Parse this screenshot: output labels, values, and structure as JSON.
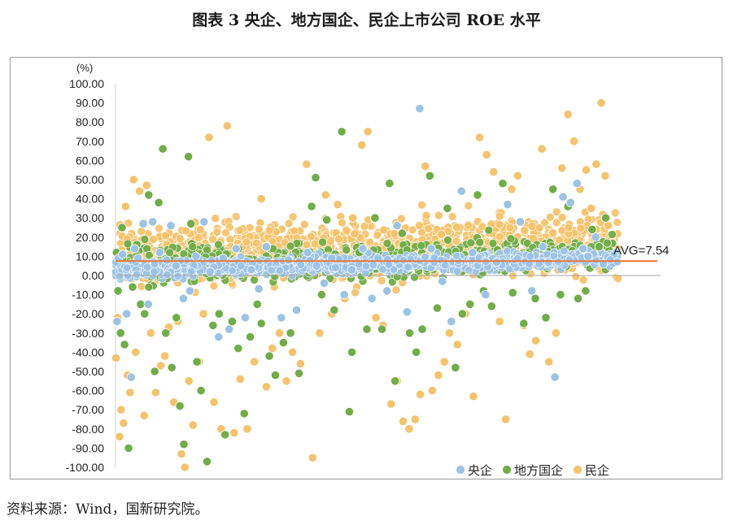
{
  "title": "图表 3  央企、地方国企、民企上市公司 ROE 水平",
  "source": "资料来源：Wind，国新研究院。",
  "chart_data": {
    "type": "scatter",
    "y_unit_label": "(%)",
    "ylim": [
      -100,
      100
    ],
    "y_ticks": [
      "100.00",
      "90.00",
      "80.00",
      "70.00",
      "60.00",
      "50.00",
      "40.00",
      "30.00",
      "20.00",
      "10.00",
      "0.00",
      "-10.00",
      "-20.00",
      "-30.00",
      "-40.00",
      "-50.00",
      "-60.00",
      "-70.00",
      "-80.00",
      "-90.00",
      "-100.00"
    ],
    "x_index_range": [
      0,
      1000
    ],
    "grid": false,
    "legend_position": "bottom-right",
    "average": {
      "label": "AVG=7.54",
      "value": 7.54,
      "color": "#E8763A"
    },
    "series": [
      {
        "name": "央企",
        "color": "#9CC3E6",
        "points": [
          [
            3,
            -24
          ],
          [
            6,
            9
          ],
          [
            14,
            11
          ],
          [
            22,
            -20
          ],
          [
            31,
            -53
          ],
          [
            38,
            14
          ],
          [
            45,
            9
          ],
          [
            55,
            27
          ],
          [
            65,
            -15
          ],
          [
            74,
            28
          ],
          [
            88,
            12
          ],
          [
            102,
            8
          ],
          [
            110,
            26
          ],
          [
            120,
            5
          ],
          [
            135,
            -12
          ],
          [
            148,
            -8
          ],
          [
            160,
            10
          ],
          [
            176,
            28
          ],
          [
            188,
            2
          ],
          [
            205,
            -32
          ],
          [
            214,
            9
          ],
          [
            226,
            -28
          ],
          [
            240,
            14
          ],
          [
            258,
            -22
          ],
          [
            270,
            3
          ],
          [
            285,
            -7
          ],
          [
            300,
            15
          ],
          [
            330,
            -22
          ],
          [
            344,
            8
          ],
          [
            360,
            -18
          ],
          [
            382,
            12
          ],
          [
            400,
            5
          ],
          [
            415,
            -4
          ],
          [
            430,
            9
          ],
          [
            455,
            -10
          ],
          [
            470,
            3
          ],
          [
            492,
            14
          ],
          [
            510,
            -12
          ],
          [
            522,
            9
          ],
          [
            540,
            -8
          ],
          [
            560,
            26
          ],
          [
            580,
            -19
          ],
          [
            605,
            87
          ],
          [
            628,
            14
          ],
          [
            650,
            -3
          ],
          [
            668,
            -24
          ],
          [
            688,
            44
          ],
          [
            710,
            12
          ],
          [
            736,
            -10
          ],
          [
            758,
            7
          ],
          [
            780,
            37
          ],
          [
            805,
            28
          ],
          [
            828,
            -8
          ],
          [
            850,
            15
          ],
          [
            874,
            -53
          ],
          [
            890,
            41
          ],
          [
            905,
            38
          ],
          [
            918,
            48
          ],
          [
            930,
            14
          ],
          [
            940,
            10
          ],
          [
            955,
            20
          ],
          [
            970,
            6
          ]
        ]
      },
      {
        "name": "地方国企",
        "color": "#70AD47",
        "points": [
          [
            2,
            12
          ],
          [
            5,
            -8
          ],
          [
            10,
            -30
          ],
          [
            13,
            25
          ],
          [
            18,
            -36
          ],
          [
            26,
            -90
          ],
          [
            34,
            -6
          ],
          [
            42,
            16
          ],
          [
            50,
            -15
          ],
          [
            58,
            -20
          ],
          [
            66,
            42
          ],
          [
            78,
            -50
          ],
          [
            86,
            38
          ],
          [
            94,
            66
          ],
          [
            100,
            -30
          ],
          [
            112,
            -48
          ],
          [
            121,
            -22
          ],
          [
            128,
            -68
          ],
          [
            136,
            -88
          ],
          [
            145,
            62
          ],
          [
            150,
            27
          ],
          [
            162,
            -45
          ],
          [
            170,
            -60
          ],
          [
            182,
            -97
          ],
          [
            194,
            -26
          ],
          [
            206,
            -20
          ],
          [
            218,
            -83
          ],
          [
            232,
            -24
          ],
          [
            244,
            -38
          ],
          [
            256,
            -72
          ],
          [
            268,
            -32
          ],
          [
            282,
            -15
          ],
          [
            290,
            -25
          ],
          [
            306,
            -42
          ],
          [
            318,
            -52
          ],
          [
            334,
            -35
          ],
          [
            348,
            -30
          ],
          [
            365,
            -51
          ],
          [
            390,
            36
          ],
          [
            398,
            51
          ],
          [
            410,
            -10
          ],
          [
            420,
            29
          ],
          [
            435,
            -18
          ],
          [
            450,
            75
          ],
          [
            465,
            -71
          ],
          [
            470,
            -40
          ],
          [
            485,
            12
          ],
          [
            500,
            -28
          ],
          [
            516,
            30
          ],
          [
            530,
            -28
          ],
          [
            545,
            48
          ],
          [
            556,
            -55
          ],
          [
            570,
            22
          ],
          [
            585,
            -30
          ],
          [
            598,
            -40
          ],
          [
            610,
            -28
          ],
          [
            625,
            52
          ],
          [
            640,
            -17
          ],
          [
            660,
            35
          ],
          [
            676,
            -48
          ],
          [
            690,
            -20
          ],
          [
            705,
            -15
          ],
          [
            720,
            42
          ],
          [
            732,
            -8
          ],
          [
            748,
            -16
          ],
          [
            770,
            48
          ],
          [
            790,
            -9
          ],
          [
            812,
            -25
          ],
          [
            835,
            -12
          ],
          [
            856,
            -22
          ],
          [
            870,
            45
          ],
          [
            885,
            -10
          ],
          [
            900,
            36
          ],
          [
            920,
            -12
          ],
          [
            935,
            -8
          ],
          [
            948,
            24
          ],
          [
            962,
            15
          ],
          [
            975,
            30
          ]
        ]
      },
      {
        "name": "民企",
        "color": "#F5C36B",
        "points": [
          [
            1,
            -43
          ],
          [
            4,
            -22
          ],
          [
            8,
            -84
          ],
          [
            11,
            -70
          ],
          [
            16,
            -77
          ],
          [
            20,
            36
          ],
          [
            24,
            -52
          ],
          [
            29,
            -61
          ],
          [
            36,
            50
          ],
          [
            40,
            -40
          ],
          [
            48,
            44
          ],
          [
            57,
            -73
          ],
          [
            62,
            47
          ],
          [
            70,
            -30
          ],
          [
            80,
            -61
          ],
          [
            90,
            -47
          ],
          [
            98,
            -42
          ],
          [
            106,
            -27
          ],
          [
            116,
            -66
          ],
          [
            124,
            -24
          ],
          [
            131,
            -93
          ],
          [
            138,
            -100
          ],
          [
            146,
            -55
          ],
          [
            154,
            -78
          ],
          [
            166,
            -45
          ],
          [
            175,
            -20
          ],
          [
            186,
            72
          ],
          [
            196,
            -66
          ],
          [
            210,
            -80
          ],
          [
            222,
            78
          ],
          [
            236,
            -82
          ],
          [
            248,
            -54
          ],
          [
            262,
            -80
          ],
          [
            276,
            -45
          ],
          [
            290,
            40
          ],
          [
            300,
            -58
          ],
          [
            312,
            -38
          ],
          [
            326,
            -30
          ],
          [
            340,
            -55
          ],
          [
            352,
            -40
          ],
          [
            368,
            -46
          ],
          [
            380,
            58
          ],
          [
            392,
            -95
          ],
          [
            406,
            -30
          ],
          [
            418,
            42
          ],
          [
            430,
            -20
          ],
          [
            442,
            37
          ],
          [
            456,
            -12
          ],
          [
            472,
            30
          ],
          [
            490,
            68
          ],
          [
            502,
            75
          ],
          [
            518,
            -22
          ],
          [
            532,
            -26
          ],
          [
            548,
            -67
          ],
          [
            560,
            -55
          ],
          [
            572,
            -76
          ],
          [
            584,
            -80
          ],
          [
            596,
            -75
          ],
          [
            606,
            -62
          ],
          [
            616,
            57
          ],
          [
            630,
            -60
          ],
          [
            642,
            -52
          ],
          [
            654,
            -45
          ],
          [
            664,
            -30
          ],
          [
            680,
            -36
          ],
          [
            696,
            -20
          ],
          [
            712,
            -63
          ],
          [
            724,
            72
          ],
          [
            738,
            63
          ],
          [
            752,
            54
          ],
          [
            764,
            -24
          ],
          [
            776,
            -75
          ],
          [
            788,
            45
          ],
          [
            800,
            52
          ],
          [
            812,
            -26
          ],
          [
            824,
            -41
          ],
          [
            836,
            -34
          ],
          [
            848,
            66
          ],
          [
            862,
            -45
          ],
          [
            876,
            -30
          ],
          [
            888,
            56
          ],
          [
            900,
            84
          ],
          [
            912,
            70
          ],
          [
            924,
            45
          ],
          [
            936,
            55
          ],
          [
            946,
            35
          ],
          [
            956,
            58
          ],
          [
            966,
            90
          ],
          [
            974,
            52
          ],
          [
            980,
            26
          ]
        ]
      }
    ]
  },
  "legend": [
    {
      "label": "央企",
      "color": "#9CC3E6"
    },
    {
      "label": "地方国企",
      "color": "#70AD47"
    },
    {
      "label": "民企",
      "color": "#F5C36B"
    }
  ]
}
